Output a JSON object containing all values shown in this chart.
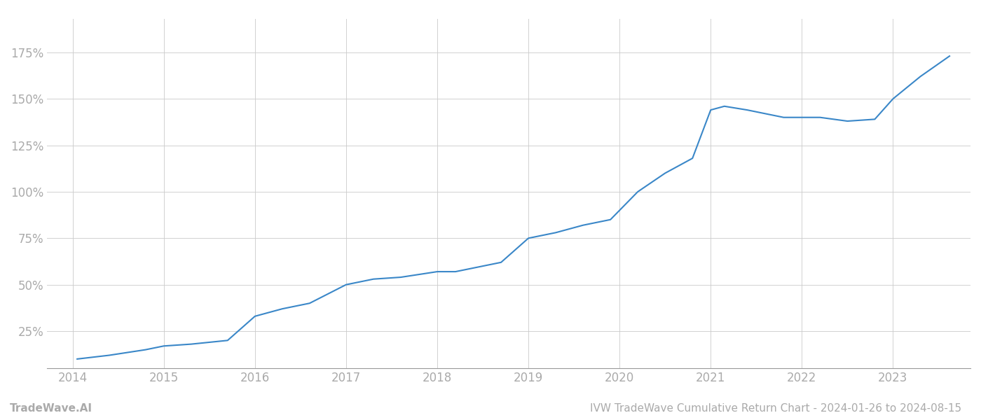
{
  "title": "IVW TradeWave Cumulative Return Chart - 2024-01-26 to 2024-08-15",
  "watermark": "TradeWave.AI",
  "line_color": "#3a87c8",
  "background_color": "#ffffff",
  "grid_color": "#cccccc",
  "x_years": [
    2014,
    2015,
    2016,
    2017,
    2018,
    2019,
    2020,
    2021,
    2022,
    2023
  ],
  "x_data": [
    2014.05,
    2014.4,
    2014.8,
    2015.0,
    2015.3,
    2015.7,
    2016.0,
    2016.3,
    2016.6,
    2017.0,
    2017.3,
    2017.6,
    2018.0,
    2018.2,
    2018.5,
    2018.7,
    2019.0,
    2019.3,
    2019.6,
    2019.9,
    2020.2,
    2020.5,
    2020.8,
    2021.0,
    2021.15,
    2021.4,
    2021.8,
    2022.2,
    2022.5,
    2022.8,
    2023.0,
    2023.3,
    2023.62
  ],
  "y_data": [
    10,
    12,
    15,
    17,
    18,
    20,
    33,
    37,
    40,
    50,
    53,
    54,
    57,
    57,
    60,
    62,
    75,
    78,
    82,
    85,
    100,
    110,
    118,
    144,
    146,
    144,
    140,
    140,
    138,
    139,
    150,
    162,
    173
  ],
  "yticks": [
    25,
    50,
    75,
    100,
    125,
    150,
    175
  ],
  "ylim": [
    5,
    193
  ],
  "xlim": [
    2013.72,
    2023.85
  ],
  "axis_text_color": "#aaaaaa",
  "title_color": "#aaaaaa",
  "watermark_color": "#aaaaaa",
  "line_width": 1.5,
  "title_fontsize": 11,
  "tick_fontsize": 12,
  "watermark_fontsize": 11
}
